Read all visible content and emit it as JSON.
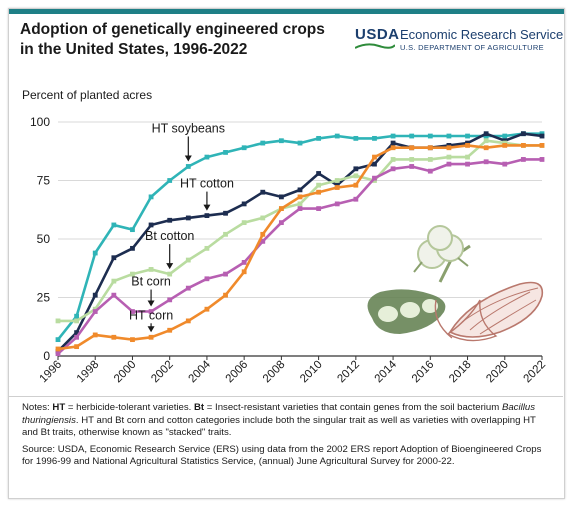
{
  "header": {
    "title_line1": "Adoption of genetically engineered crops",
    "title_line2": "in the United States, 1996-2022",
    "logo_usda": "USDA",
    "logo_ers": "Economic Research Service",
    "logo_dept": "U.S. DEPARTMENT OF AGRICULTURE"
  },
  "colors": {
    "accent": "#1e7f86",
    "ht_soybeans": "#2fb4b7",
    "ht_cotton": "#1d2d50",
    "bt_cotton": "#b9dca0",
    "bt_corn": "#b75fb2",
    "ht_corn": "#f08a2b",
    "grid": "#d9d9d9"
  },
  "chart_data": {
    "type": "line",
    "title": "Adoption of genetically engineered crops in the United States, 1996-2022",
    "ylabel": "Percent of planted acres",
    "xlabel": "",
    "ylim": [
      0,
      100
    ],
    "yticks": [
      "0",
      "25",
      "50",
      "75",
      "100"
    ],
    "xlim": [
      1996,
      2022
    ],
    "xticks": [
      "1996",
      "1998",
      "2000",
      "2002",
      "2004",
      "2006",
      "2008",
      "2010",
      "2012",
      "2014",
      "2016",
      "2018",
      "2020",
      "2022"
    ],
    "grid": "horizontal",
    "x": [
      1996,
      1997,
      1998,
      1999,
      2000,
      2001,
      2002,
      2003,
      2004,
      2005,
      2006,
      2007,
      2008,
      2009,
      2010,
      2011,
      2012,
      2013,
      2014,
      2015,
      2016,
      2017,
      2018,
      2019,
      2020,
      2021,
      2022
    ],
    "series": [
      {
        "name": "HT soybeans",
        "color_key": "ht_soybeans",
        "values": [
          7,
          17,
          44,
          56,
          54,
          68,
          75,
          81,
          85,
          87,
          89,
          91,
          92,
          91,
          93,
          94,
          93,
          93,
          94,
          94,
          94,
          94,
          94,
          94,
          94,
          95,
          95
        ]
      },
      {
        "name": "HT cotton",
        "color_key": "ht_cotton",
        "values": [
          2,
          10,
          26,
          42,
          46,
          56,
          58,
          59,
          60,
          61,
          65,
          70,
          68,
          71,
          78,
          73,
          80,
          82,
          91,
          89,
          89,
          90,
          91,
          95,
          92,
          95,
          94
        ]
      },
      {
        "name": "Bt cotton",
        "color_key": "bt_cotton",
        "values": [
          15,
          15,
          20,
          32,
          35,
          37,
          35,
          41,
          46,
          52,
          57,
          59,
          63,
          65,
          73,
          75,
          77,
          75,
          84,
          84,
          84,
          85,
          85,
          92,
          91,
          90,
          90
        ]
      },
      {
        "name": "Bt corn",
        "color_key": "bt_corn",
        "values": [
          1,
          8,
          19,
          26,
          19,
          19,
          24,
          29,
          33,
          35,
          40,
          49,
          57,
          63,
          63,
          65,
          67,
          76,
          80,
          81,
          79,
          82,
          82,
          83,
          82,
          84,
          84
        ]
      },
      {
        "name": "HT corn",
        "color_key": "ht_corn",
        "values": [
          3,
          4,
          9,
          8,
          7,
          8,
          11,
          15,
          20,
          26,
          36,
          52,
          63,
          68,
          70,
          72,
          73,
          85,
          89,
          89,
          89,
          89,
          90,
          89,
          90,
          90,
          90
        ]
      }
    ],
    "annotations": [
      {
        "label": "HT soybeans",
        "series": "HT soybeans",
        "x": 2003
      },
      {
        "label": "HT cotton",
        "series": "HT cotton",
        "x": 2004
      },
      {
        "label": "Bt cotton",
        "series": "Bt cotton",
        "x": 2002
      },
      {
        "label": "Bt corn",
        "series": "Bt corn",
        "x": 2001
      },
      {
        "label": "HT corn",
        "series": "HT corn",
        "x": 2001
      }
    ]
  },
  "notes": {
    "notes_label": "Notes:",
    "ht_abbr": "HT",
    "ht_def": " = herbicide-tolerant varieties. ",
    "bt_abbr": "Bt",
    "bt_def": " = Insect-resistant varieties that contain genes from the soil bacterium ",
    "bt_species": "Bacillus thuringiensis",
    "rest": ". HT and Bt corn and cotton categories include both the singular trait as well as varieties with overlapping HT and Bt traits, otherwise known as \"stacked\" traits.",
    "source": "Source: USDA, Economic Research Service (ERS) using data from the 2002 ERS report Adoption of Bioengineered Crops for 1996-99 and National Agricultural Statistics Service, (annual) June Agricultural Survey for 2000-22."
  }
}
